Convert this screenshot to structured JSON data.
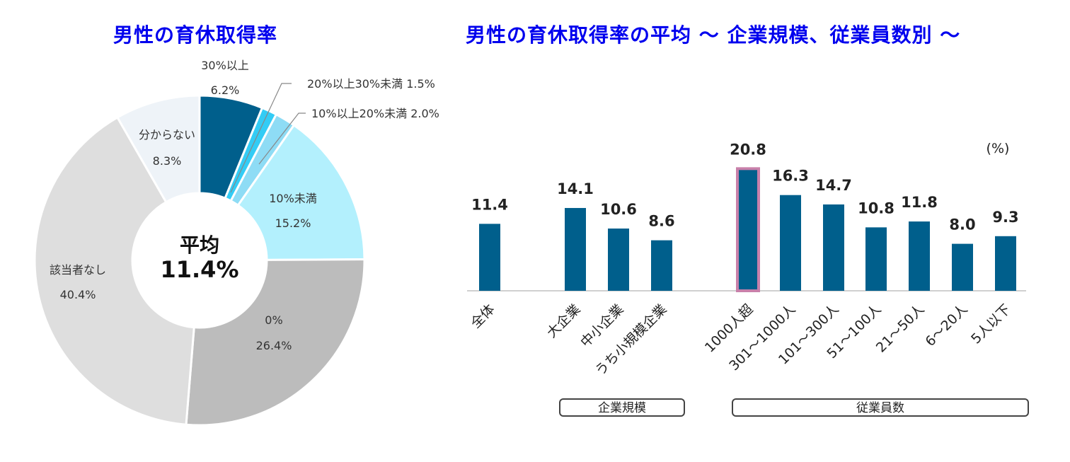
{
  "chart_data": [
    {
      "type": "pie",
      "title": "男性の育休取得率",
      "center": {
        "line1": "平均",
        "line2": "11.4%"
      },
      "slices": [
        {
          "label": "30%以上",
          "value": 6.2,
          "value_text": "6.2%",
          "color": "#005f8c",
          "label_style": "outside-top"
        },
        {
          "label": "20%以上30%未満",
          "value": 1.5,
          "value_text": "1.5%",
          "color": "#33ccf5",
          "label_style": "outside-line"
        },
        {
          "label": "10%以上20%未満",
          "value": 2.0,
          "value_text": "2.0%",
          "color": "#8edcf5",
          "label_style": "outside-line"
        },
        {
          "label": "10%未満",
          "value": 15.2,
          "value_text": "15.2%",
          "color": "#b3f0fd",
          "label_style": "inside"
        },
        {
          "label": "0%",
          "value": 26.4,
          "value_text": "26.4%",
          "color": "#bcbcbc",
          "label_style": "inside"
        },
        {
          "label": "該当者なし",
          "value": 40.4,
          "value_text": "40.4%",
          "color": "#dedede",
          "label_style": "inside"
        },
        {
          "label": "分からない",
          "value": 8.3,
          "value_text": "8.3%",
          "color": "#eef3f8",
          "label_style": "inside"
        }
      ]
    },
    {
      "type": "bar",
      "title": "男性の育休取得率の平均 ～ 企業規模、従業員数別 ～",
      "unit_label": "(%)",
      "categories": [
        "全体",
        "大企業",
        "中小企業",
        "うち小規模企業",
        "1000人超",
        "301～1000人",
        "101～300人",
        "51～100人",
        "21～50人",
        "6～20人",
        "5人以下"
      ],
      "values": [
        11.4,
        14.1,
        10.6,
        8.6,
        20.8,
        16.3,
        14.7,
        10.8,
        11.8,
        8.0,
        9.3
      ],
      "value_labels": [
        "11.4",
        "14.1",
        "10.6",
        "8.6",
        "20.8",
        "16.3",
        "14.7",
        "10.8",
        "11.8",
        "8.0",
        "9.3"
      ],
      "highlight_index": 4,
      "bar_color": "#005f8c",
      "highlight_border_color": "#c880aa",
      "groups": [
        {
          "label": "企業規模",
          "start": 1,
          "end": 3
        },
        {
          "label": "従業員数",
          "start": 4,
          "end": 10
        }
      ],
      "ylim": [
        0,
        23
      ],
      "grid": false
    }
  ]
}
